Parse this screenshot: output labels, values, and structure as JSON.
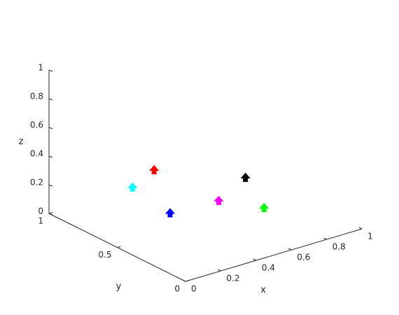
{
  "chart_data": {
    "type": "scatter3d",
    "xlabel": "x",
    "ylabel": "y",
    "zlabel": "z",
    "xlim": [
      0,
      1
    ],
    "ylim": [
      0,
      1
    ],
    "zlim": [
      0,
      1
    ],
    "xticks": [
      0,
      0.2,
      0.4,
      0.6,
      0.8,
      1
    ],
    "yticks": [
      0,
      0.5,
      1
    ],
    "zticks": [
      0,
      0.2,
      0.4,
      0.6,
      0.8,
      1
    ],
    "points": [
      {
        "x": 0.48,
        "y": 0.85,
        "z": 0.2,
        "color": "#ff0000"
      },
      {
        "x": 0.28,
        "y": 0.75,
        "z": 0.2,
        "color": "#00ffff"
      },
      {
        "x": 0.23,
        "y": 0.41,
        "z": 0.2,
        "color": "#0000ff"
      },
      {
        "x": 0.49,
        "y": 0.39,
        "z": 0.2,
        "color": "#ff00ff"
      },
      {
        "x": 0.75,
        "y": 0.53,
        "z": 0.2,
        "color": "#000000"
      },
      {
        "x": 0.6,
        "y": 0.2,
        "z": 0.2,
        "color": "#00ff00"
      }
    ]
  }
}
